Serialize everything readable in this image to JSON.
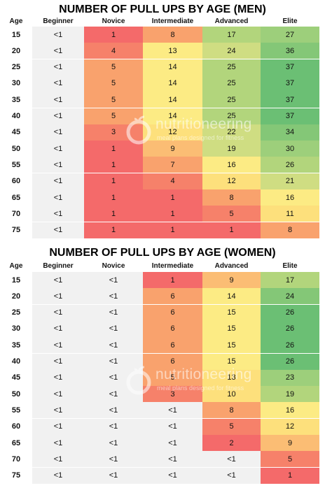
{
  "watermark": {
    "brand": "nutritioneering",
    "tagline": "meal plans designed for fitness"
  },
  "columns": [
    "Age",
    "Beginner",
    "Novice",
    "Intermediate",
    "Advanced",
    "Elite"
  ],
  "colors": {
    "lt": "#f1f1f1",
    "r0": "#f46a6a",
    "r1": "#f6816a",
    "o1": "#f9a26d",
    "o2": "#fbbd74",
    "y1": "#fde07c",
    "y2": "#fceb84",
    "g1": "#cfdd82",
    "g2": "#b2d57c",
    "g3": "#9dcf7b",
    "g4": "#84c777",
    "g5": "#6bbf74"
  },
  "tables": [
    {
      "title": "NUMBER OF PULL UPS BY AGE (MEN)",
      "rows": [
        {
          "age": "15",
          "cells": [
            "<1",
            "1",
            "8",
            "17",
            "27"
          ],
          "colors": [
            "lt",
            "r0",
            "o1",
            "g2",
            "g3"
          ]
        },
        {
          "age": "20",
          "cells": [
            "<1",
            "4",
            "13",
            "24",
            "36"
          ],
          "colors": [
            "lt",
            "r1",
            "y2",
            "g1",
            "g4"
          ]
        },
        {
          "age": "25",
          "cells": [
            "<1",
            "5",
            "14",
            "25",
            "37"
          ],
          "colors": [
            "lt",
            "o1",
            "y2",
            "g2",
            "g5"
          ]
        },
        {
          "age": "30",
          "cells": [
            "<1",
            "5",
            "14",
            "25",
            "37"
          ],
          "colors": [
            "lt",
            "o1",
            "y2",
            "g2",
            "g5"
          ]
        },
        {
          "age": "35",
          "cells": [
            "<1",
            "5",
            "14",
            "25",
            "37"
          ],
          "colors": [
            "lt",
            "o1",
            "y2",
            "g2",
            "g5"
          ]
        },
        {
          "age": "40",
          "cells": [
            "<1",
            "5",
            "14",
            "25",
            "37"
          ],
          "colors": [
            "lt",
            "o1",
            "y2",
            "g2",
            "g5"
          ]
        },
        {
          "age": "45",
          "cells": [
            "<1",
            "3",
            "12",
            "22",
            "34"
          ],
          "colors": [
            "lt",
            "r1",
            "y1",
            "g1",
            "g4"
          ]
        },
        {
          "age": "50",
          "cells": [
            "<1",
            "1",
            "9",
            "19",
            "30"
          ],
          "colors": [
            "lt",
            "r0",
            "o2",
            "g1",
            "g3"
          ]
        },
        {
          "age": "55",
          "cells": [
            "<1",
            "1",
            "7",
            "16",
            "26"
          ],
          "colors": [
            "lt",
            "r0",
            "o1",
            "y2",
            "g2"
          ]
        },
        {
          "age": "60",
          "cells": [
            "<1",
            "1",
            "4",
            "12",
            "21"
          ],
          "colors": [
            "lt",
            "r0",
            "r1",
            "y1",
            "g1"
          ]
        },
        {
          "age": "65",
          "cells": [
            "<1",
            "1",
            "1",
            "8",
            "16"
          ],
          "colors": [
            "lt",
            "r0",
            "r0",
            "o1",
            "y2"
          ]
        },
        {
          "age": "70",
          "cells": [
            "<1",
            "1",
            "1",
            "5",
            "11"
          ],
          "colors": [
            "lt",
            "r0",
            "r0",
            "r1",
            "y1"
          ]
        },
        {
          "age": "75",
          "cells": [
            "<1",
            "1",
            "1",
            "1",
            "8"
          ],
          "colors": [
            "lt",
            "r0",
            "r0",
            "r0",
            "o1"
          ]
        }
      ]
    },
    {
      "title": "NUMBER OF PULL UPS BY AGE (WOMEN)",
      "rows": [
        {
          "age": "15",
          "cells": [
            "<1",
            "<1",
            "1",
            "9",
            "17"
          ],
          "colors": [
            "lt",
            "lt",
            "r0",
            "o2",
            "g2"
          ]
        },
        {
          "age": "20",
          "cells": [
            "<1",
            "<1",
            "6",
            "14",
            "24"
          ],
          "colors": [
            "lt",
            "lt",
            "o1",
            "y2",
            "g4"
          ]
        },
        {
          "age": "25",
          "cells": [
            "<1",
            "<1",
            "6",
            "15",
            "26"
          ],
          "colors": [
            "lt",
            "lt",
            "o1",
            "y2",
            "g5"
          ]
        },
        {
          "age": "30",
          "cells": [
            "<1",
            "<1",
            "6",
            "15",
            "26"
          ],
          "colors": [
            "lt",
            "lt",
            "o1",
            "y2",
            "g5"
          ]
        },
        {
          "age": "35",
          "cells": [
            "<1",
            "<1",
            "6",
            "15",
            "26"
          ],
          "colors": [
            "lt",
            "lt",
            "o1",
            "y2",
            "g5"
          ]
        },
        {
          "age": "40",
          "cells": [
            "<1",
            "<1",
            "6",
            "15",
            "26"
          ],
          "colors": [
            "lt",
            "lt",
            "o1",
            "y2",
            "g5"
          ]
        },
        {
          "age": "45",
          "cells": [
            "<1",
            "<1",
            "5",
            "13",
            "23"
          ],
          "colors": [
            "lt",
            "lt",
            "o1",
            "y1",
            "g3"
          ]
        },
        {
          "age": "50",
          "cells": [
            "<1",
            "<1",
            "3",
            "10",
            "19"
          ],
          "colors": [
            "lt",
            "lt",
            "r1",
            "y1",
            "g2"
          ]
        },
        {
          "age": "55",
          "cells": [
            "<1",
            "<1",
            "<1",
            "8",
            "16"
          ],
          "colors": [
            "lt",
            "lt",
            "lt",
            "o1",
            "y2"
          ]
        },
        {
          "age": "60",
          "cells": [
            "<1",
            "<1",
            "<1",
            "5",
            "12"
          ],
          "colors": [
            "lt",
            "lt",
            "lt",
            "r1",
            "y1"
          ]
        },
        {
          "age": "65",
          "cells": [
            "<1",
            "<1",
            "<1",
            "2",
            "9"
          ],
          "colors": [
            "lt",
            "lt",
            "lt",
            "r0",
            "o2"
          ]
        },
        {
          "age": "70",
          "cells": [
            "<1",
            "<1",
            "<1",
            "<1",
            "5"
          ],
          "colors": [
            "lt",
            "lt",
            "lt",
            "lt",
            "r1"
          ]
        },
        {
          "age": "75",
          "cells": [
            "<1",
            "<1",
            "<1",
            "<1",
            "1"
          ],
          "colors": [
            "lt",
            "lt",
            "lt",
            "lt",
            "r0"
          ]
        }
      ]
    }
  ]
}
